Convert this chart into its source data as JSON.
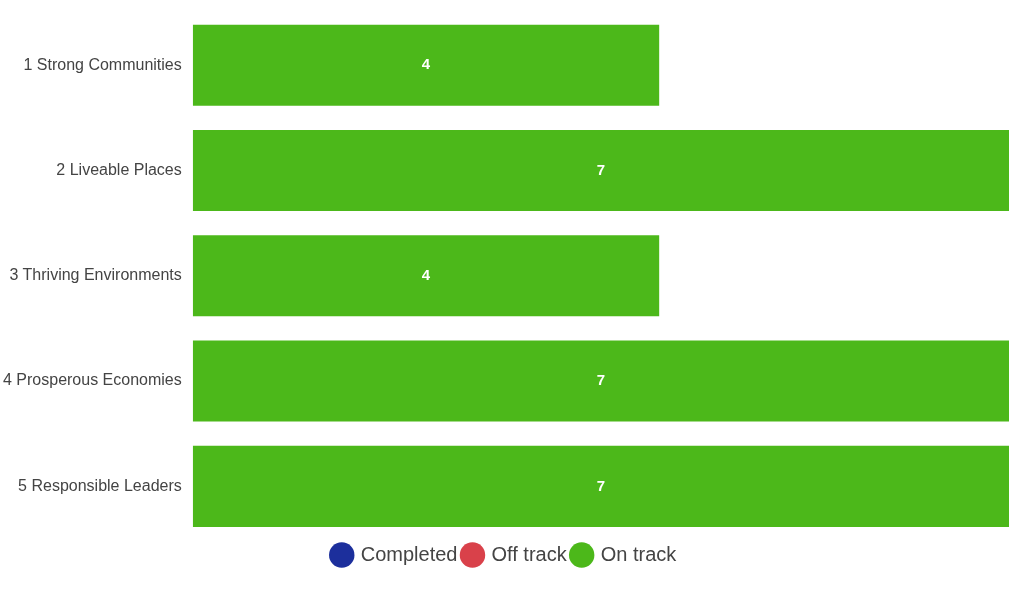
{
  "chart_data": {
    "type": "bar",
    "orientation": "horizontal",
    "stacked": true,
    "categories": [
      "1 Strong Communities",
      "2 Liveable Places",
      "3 Thriving Environments",
      "4 Prosperous Economies",
      "5 Responsible Leaders"
    ],
    "series": [
      {
        "name": "Completed",
        "color": "#1c2f9c",
        "values": [
          0,
          0,
          0,
          0,
          0
        ]
      },
      {
        "name": "Off track",
        "color": "#d9414a",
        "values": [
          0,
          0,
          0,
          0,
          0
        ]
      },
      {
        "name": "On track",
        "color": "#4cb81a",
        "values": [
          4,
          7,
          4,
          7,
          7
        ],
        "value_labels": [
          "4",
          "7",
          "4",
          "7",
          "7"
        ]
      }
    ],
    "xlim": [
      0,
      7
    ],
    "tick_labels": "y",
    "legend": "bottom"
  }
}
